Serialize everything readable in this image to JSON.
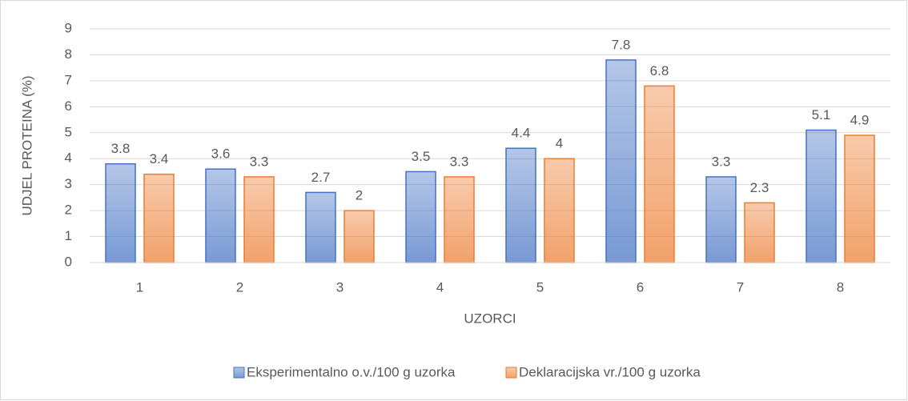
{
  "chart_data": {
    "type": "bar",
    "y_label": "UDJEL PROTEINA (%)",
    "x_label": "UZORCI",
    "categories": [
      "1",
      "2",
      "3",
      "4",
      "5",
      "6",
      "7",
      "8"
    ],
    "series": [
      {
        "name": "Eksperimentalno o.v./100 g uzorka",
        "color": "#4472c4",
        "values": [
          3.8,
          3.6,
          2.7,
          3.5,
          4.4,
          7.8,
          3.3,
          5.1
        ]
      },
      {
        "name": "Deklaracijska vr./100 g uzorka",
        "color": "#ed7d31",
        "values": [
          3.4,
          3.3,
          2,
          3.3,
          4,
          6.8,
          2.3,
          4.9
        ]
      }
    ],
    "ylim": [
      0,
      9
    ],
    "yticks": [
      0,
      1,
      2,
      3,
      4,
      5,
      6,
      7,
      8,
      9
    ],
    "grid": true,
    "legend": "bottom"
  }
}
